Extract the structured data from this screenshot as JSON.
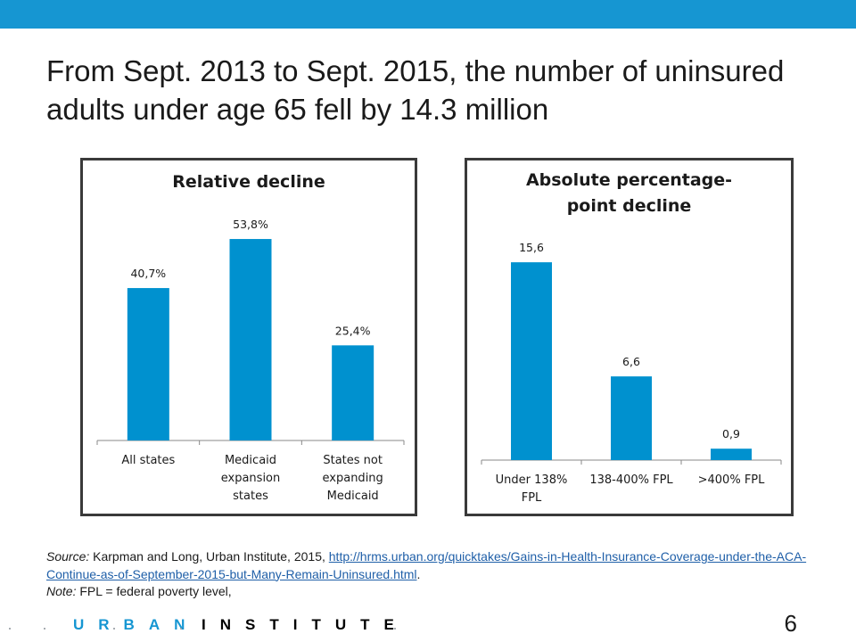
{
  "header": {
    "title": "From Sept. 2013 to Sept. 2015, the number of uninsured  adults under age 65 fell by 14.3 million"
  },
  "colors": {
    "bar": "#0091cf",
    "accent": "#1696d2",
    "border": "#3a3a3a"
  },
  "chart_data": [
    {
      "type": "bar",
      "title": "Relative decline",
      "categories": [
        "All states",
        "Medicaid expansion states",
        "States not expanding Medicaid"
      ],
      "category_lines": [
        [
          "All states"
        ],
        [
          "Medicaid",
          "expansion",
          "states"
        ],
        [
          "States not",
          "expanding",
          "Medicaid"
        ]
      ],
      "values": [
        40.7,
        53.8,
        25.4
      ],
      "value_labels": [
        "40,7%",
        "53,8%",
        "25,4%"
      ],
      "ylim": [
        0,
        60
      ],
      "grid": false,
      "legend": "none"
    },
    {
      "type": "bar",
      "title": "Absolute percentage- point decline",
      "title_lines": [
        "Absolute percentage-",
        "point decline"
      ],
      "categories": [
        "Under 138% FPL",
        "138-400% FPL",
        ">400% FPL"
      ],
      "category_lines": [
        [
          "Under 138%",
          "FPL"
        ],
        [
          "138-400% FPL"
        ],
        [
          ">400% FPL"
        ]
      ],
      "values": [
        15.6,
        6.6,
        0.9
      ],
      "value_labels": [
        "15,6",
        "6,6",
        "0,9"
      ],
      "ylim": [
        0,
        18
      ],
      "grid": false,
      "legend": "none"
    }
  ],
  "source": {
    "label": "Source:",
    "text": " Karpman and Long, Urban Institute, 2015, ",
    "link": "http://hrms.urban.org/quicktakes/Gains-in-Health-Insurance-Coverage-under-the-ACA-Continue-as-of-September-2015-but-Many-Remain-Uninsured.html",
    "after": "."
  },
  "note": {
    "label": "Note:",
    "text": " FPL = federal poverty level,"
  },
  "footer": {
    "dots_left": "· · · ·",
    "brand_urban": "URBAN",
    "separator": "·",
    "brand_institute": "INSTITUTE",
    "dots_right": "·",
    "page_number": "6"
  }
}
